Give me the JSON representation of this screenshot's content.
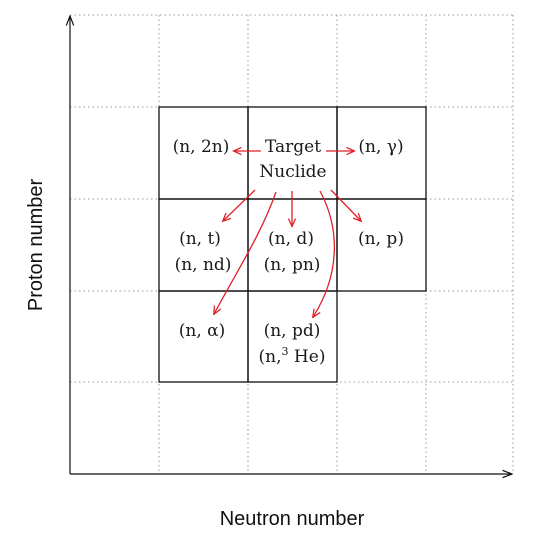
{
  "axes": {
    "x_label": "Neutron number",
    "y_label": "Proton number"
  },
  "center": {
    "line1": "Target",
    "line2": "Nuclide"
  },
  "cells": {
    "left_top": "(n, 2n)",
    "right_top": "(n, γ)",
    "left_mid_1": "(n, t)",
    "left_mid_2": "(n, nd)",
    "center_mid_1": "(n, d)",
    "center_mid_2": "(n, pn)",
    "right_mid": "(n, p)",
    "left_bot": "(n, α)",
    "center_bot_1": "(n, pd)",
    "center_bot_2_prefix": "(n,",
    "center_bot_2_sup": "3",
    "center_bot_2_suffix": " He)"
  },
  "colors": {
    "arrow": "#e0202a",
    "grid_dotted": "#9a9a9a",
    "lines": "#111111"
  }
}
